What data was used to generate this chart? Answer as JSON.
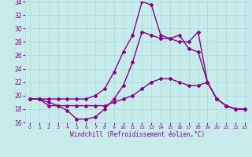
{
  "xlabel": "Windchill (Refroidissement éolien,°C)",
  "xlim": [
    -0.5,
    23.5
  ],
  "ylim": [
    16,
    34
  ],
  "yticks": [
    16,
    18,
    20,
    22,
    24,
    26,
    28,
    30,
    32,
    34
  ],
  "xticks": [
    0,
    1,
    2,
    3,
    4,
    5,
    6,
    7,
    8,
    9,
    10,
    11,
    12,
    13,
    14,
    15,
    16,
    17,
    18,
    19,
    20,
    21,
    22,
    23
  ],
  "bg_color": "#c8ecec",
  "grid_color": "#aadddd",
  "line_color": "#880088",
  "line1_x": [
    0,
    1,
    2,
    3,
    4,
    5,
    6,
    7,
    8,
    9,
    10,
    11,
    12,
    13,
    14,
    15,
    16,
    17,
    18,
    19,
    20,
    21,
    22,
    23
  ],
  "line1_y": [
    19.5,
    19.5,
    18.5,
    18.5,
    17.8,
    16.5,
    16.5,
    16.8,
    18.0,
    19.5,
    21.5,
    25.0,
    29.5,
    29.0,
    28.5,
    28.5,
    28.0,
    28.0,
    29.5,
    22.0,
    19.5,
    18.5,
    18.0,
    18.0
  ],
  "line2_x": [
    0,
    1,
    2,
    3,
    4,
    5,
    6,
    7,
    8,
    9,
    10,
    11,
    12,
    13,
    14,
    15,
    16,
    17,
    18,
    19,
    20,
    21,
    22,
    23
  ],
  "line2_y": [
    19.5,
    19.5,
    19.0,
    18.5,
    18.5,
    18.5,
    18.5,
    18.5,
    18.5,
    19.0,
    19.5,
    20.0,
    21.0,
    22.0,
    22.5,
    22.5,
    22.0,
    21.5,
    21.5,
    22.0,
    19.5,
    18.5,
    18.0,
    18.0
  ],
  "line3_x": [
    0,
    1,
    2,
    3,
    4,
    5,
    6,
    7,
    8,
    9,
    10,
    11,
    12,
    13,
    14,
    15,
    16,
    17,
    18,
    19,
    20,
    21,
    22,
    23
  ],
  "line3_y": [
    19.5,
    19.5,
    19.5,
    19.5,
    19.5,
    19.5,
    19.5,
    20.0,
    21.0,
    23.5,
    26.5,
    29.0,
    34.0,
    33.5,
    29.0,
    28.5,
    29.0,
    27.0,
    26.5,
    22.0,
    19.5,
    18.5,
    18.0,
    18.0
  ],
  "marker": "D",
  "marker_size": 2,
  "line_width": 1.0
}
